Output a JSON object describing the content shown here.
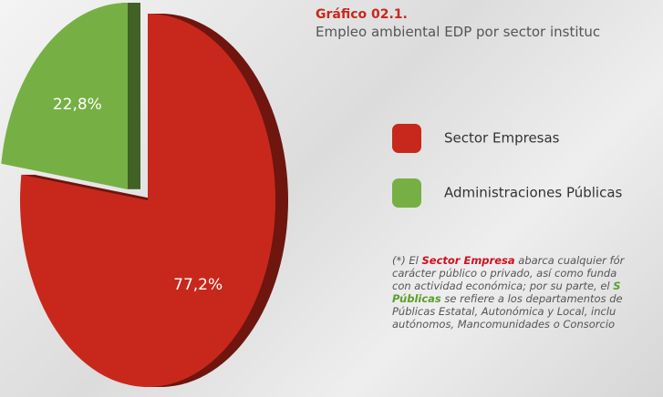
{
  "chart_data": {
    "type": "pie",
    "title": "Gráfico 02.1.",
    "subtitle": "Empleo ambiental EDP por sector instituc",
    "categories": [
      "Sector Empresas",
      "Administraciones Públicas"
    ],
    "values": [
      77.2,
      22.8
    ],
    "value_labels": [
      "77,2%",
      "22,8%"
    ],
    "colors": [
      "#c8281c",
      "#76b044"
    ],
    "note": [
      [
        "(*) El ",
        "Sector Empresa",
        " abarca cualquier fór"
      ],
      [
        "carácter público o privado, así como funda"
      ],
      [
        "con actividad económica; por su parte, el ",
        "S"
      ],
      [
        "Públicas",
        " se refiere a los departamentos de"
      ],
      [
        "Públicas Estatal, Autonómica y Local, inclu"
      ],
      [
        "autónomos, Mancomunidades o Consorcio"
      ]
    ]
  }
}
